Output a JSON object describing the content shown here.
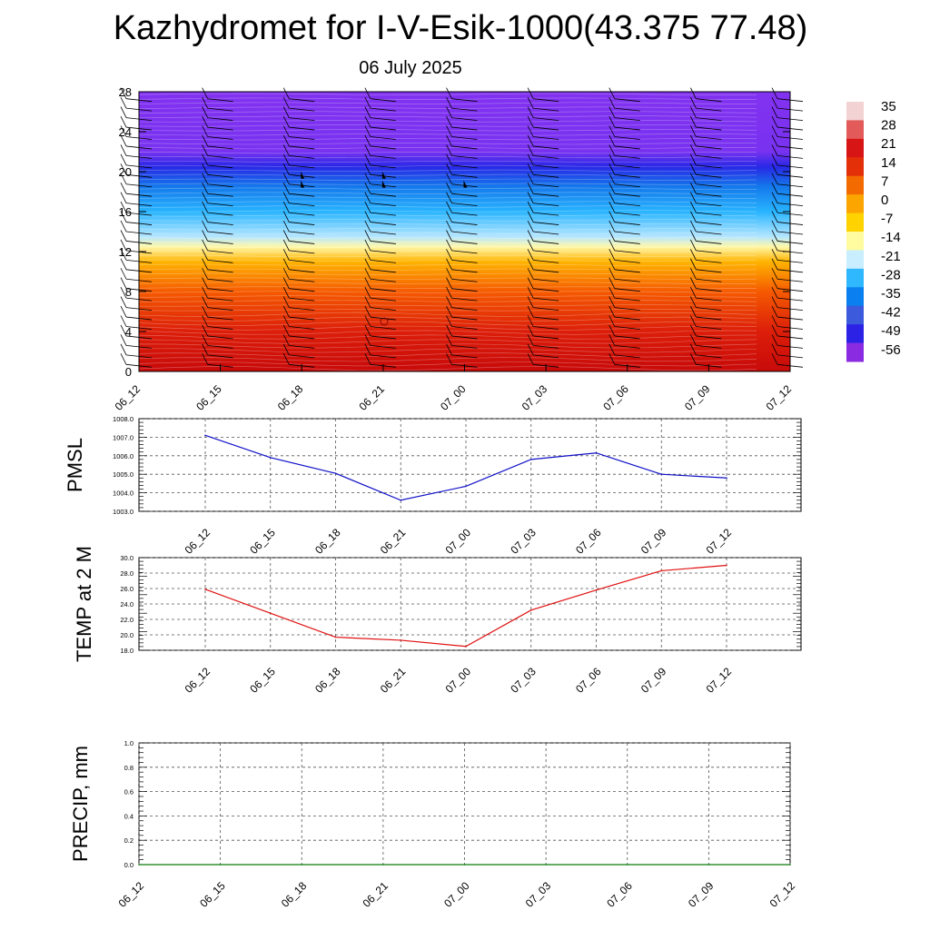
{
  "title": "Kazhydromet for I-V-Esik-1000(43.375 77.48)",
  "date": "06 July 2025",
  "chart_data": [
    {
      "type": "heatmap",
      "x_ticks": [
        "06_12",
        "06_15",
        "06_18",
        "06_21",
        "07_00",
        "07_03",
        "07_06",
        "07_09",
        "07_12"
      ],
      "y_ticks": [
        "0",
        "4",
        "8",
        "12",
        "16",
        "20",
        "24",
        "28"
      ],
      "ylim": [
        0,
        28
      ],
      "colorbar_labels": [
        "35",
        "28",
        "21",
        "14",
        "7",
        "0",
        "-7",
        "-14",
        "-21",
        "-28",
        "-35",
        "-42",
        "-49",
        "-56"
      ],
      "colorbar_colors": [
        "#f2d2d2",
        "#e25a5a",
        "#d81515",
        "#e43008",
        "#f36a00",
        "#fca400",
        "#ffd200",
        "#fffca0",
        "#c8eeff",
        "#2fb7ff",
        "#0a7ff0",
        "#3c5adc",
        "#2b22e6",
        "#8a2be2"
      ],
      "profile_by_height": [
        {
          "h": 0,
          "color": "#c80a0a"
        },
        {
          "h": 4,
          "color": "#dc1e0a"
        },
        {
          "h": 8,
          "color": "#f55a00"
        },
        {
          "h": 11,
          "color": "#ffb400"
        },
        {
          "h": 12.5,
          "color": "#fff8aa"
        },
        {
          "h": 13.5,
          "color": "#b4e6ff"
        },
        {
          "h": 16,
          "color": "#28b4ff"
        },
        {
          "h": 18.5,
          "color": "#1478eb"
        },
        {
          "h": 20.5,
          "color": "#2828e6"
        },
        {
          "h": 22,
          "color": "#7832f0"
        },
        {
          "h": 28,
          "color": "#8232f0"
        }
      ]
    },
    {
      "type": "line",
      "ylabel": "PMSL",
      "x_ticks": [
        "06_12",
        "06_15",
        "06_18",
        "06_21",
        "07_00",
        "07_03",
        "07_06",
        "07_09",
        "07_12"
      ],
      "y_ticks": [
        "1003.0",
        "1004.0",
        "1005.0",
        "1006.0",
        "1007.0",
        "1008.0"
      ],
      "ylim": [
        1003,
        1008
      ],
      "color": "#1010c8",
      "values": [
        1007.1,
        1005.9,
        1005.05,
        1003.6,
        1004.35,
        1005.8,
        1006.15,
        1005.0,
        1004.8
      ]
    },
    {
      "type": "line",
      "ylabel": "TEMP at 2 M",
      "x_ticks": [
        "06_12",
        "06_15",
        "06_18",
        "06_21",
        "07_00",
        "07_03",
        "07_06",
        "07_09",
        "07_12"
      ],
      "y_ticks": [
        "18.0",
        "20.0",
        "22.0",
        "24.0",
        "26.0",
        "28.0",
        "30.0"
      ],
      "ylim": [
        18,
        30
      ],
      "color": "#e01010",
      "values": [
        25.9,
        22.8,
        19.7,
        19.3,
        18.5,
        23.2,
        25.8,
        28.3,
        29.0
      ]
    },
    {
      "type": "line",
      "ylabel": "PRECIP, mm",
      "x_ticks": [
        "06_12",
        "06_15",
        "06_18",
        "06_21",
        "07_00",
        "07_03",
        "07_06",
        "07_09",
        "07_12"
      ],
      "y_ticks": [
        "0.0",
        "0.2",
        "0.4",
        "0.6",
        "0.8",
        "1.0"
      ],
      "ylim": [
        0,
        1
      ],
      "color": "#0a7a0a",
      "values": [
        0,
        0,
        0,
        0,
        0,
        0,
        0,
        0,
        0
      ]
    }
  ]
}
